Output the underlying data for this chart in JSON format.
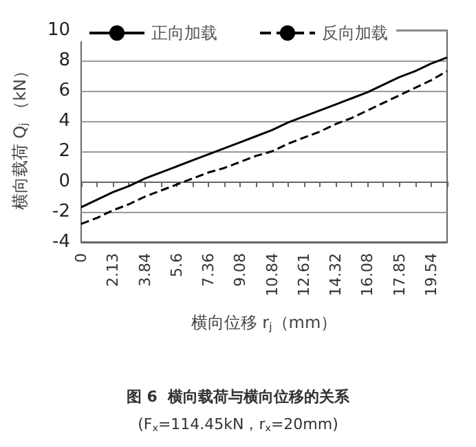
{
  "chart_data": {
    "type": "line",
    "title": "图 6  横向载荷与横向位移的关系",
    "subtitle": "(F$_{x}$=114.45kN，r$_{x}$=20mm)",
    "xlabel": "横向位移 r$_{j}$（mm）",
    "ylabel": "横向载荷 Q$_{j}$ （kN）",
    "categories": [
      "0",
      null,
      "2.13",
      null,
      "3.84",
      null,
      "5.6",
      null,
      "7.36",
      null,
      "9.08",
      null,
      "10.84",
      null,
      "12.61",
      null,
      "14.32",
      null,
      "16.08",
      null,
      "17.85",
      null,
      "19.54",
      null
    ],
    "series": [
      {
        "name": "正向加载",
        "color": "#000000",
        "line_style": "solid",
        "values": [
          -1.7,
          -1.2,
          -0.7,
          -0.3,
          0.2,
          0.6,
          1.0,
          1.4,
          1.8,
          2.2,
          2.6,
          3.0,
          3.4,
          3.9,
          4.3,
          4.7,
          5.1,
          5.5,
          5.9,
          6.4,
          6.9,
          7.3,
          7.8,
          8.2
        ]
      },
      {
        "name": "反向加载",
        "color": "#000000",
        "line_style": "dashed",
        "values": [
          -2.8,
          -2.4,
          -1.9,
          -1.5,
          -1.0,
          -0.6,
          -0.2,
          0.2,
          0.6,
          0.9,
          1.3,
          1.7,
          2.0,
          2.5,
          2.9,
          3.3,
          3.8,
          4.2,
          4.7,
          5.2,
          5.7,
          6.2,
          6.7,
          7.3
        ]
      }
    ],
    "ylim": [
      -4,
      10
    ],
    "yticks": [
      -4,
      -2,
      0,
      2,
      4,
      6,
      8,
      10
    ],
    "grid": "y",
    "legend": "top",
    "marker": "none"
  }
}
